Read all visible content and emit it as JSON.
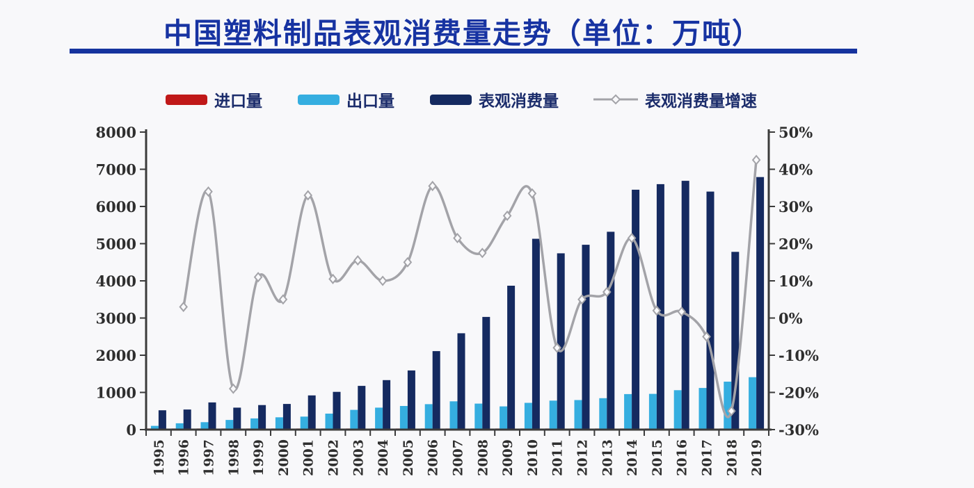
{
  "page": {
    "title": "中国塑料制品表观消费量走势（单位：万吨）"
  },
  "colors": {
    "title": "#1733a2",
    "underline": "#16339e",
    "import_bar": "#c01818",
    "export_bar": "#35aee0",
    "consumption_bar": "#152a60",
    "growth_line": "#a3a3a8",
    "axis": "#3b3b3b",
    "background": "#f8f8fa"
  },
  "legend": {
    "items": [
      {
        "label": "进口量",
        "type": "bar",
        "color": "#c01818"
      },
      {
        "label": "出口量",
        "type": "bar",
        "color": "#35aee0"
      },
      {
        "label": "表观消费量",
        "type": "bar",
        "color": "#152a60"
      },
      {
        "label": "表观消费量增速",
        "type": "line",
        "color": "#a3a3a8"
      }
    ]
  },
  "chart_data": {
    "type": "bar",
    "title": "中国塑料制品表观消费量走势（单位：万吨）",
    "xlabel": "",
    "ylabel_left": "万吨",
    "ylabel_right": "%",
    "grid": false,
    "legend_position": "top",
    "categories": [
      "1995",
      "1996",
      "1997",
      "1998",
      "1999",
      "2000",
      "2001",
      "2002",
      "2003",
      "2004",
      "2005",
      "2006",
      "2007",
      "2008",
      "2009",
      "2010",
      "2011",
      "2012",
      "2013",
      "2014",
      "2015",
      "2016",
      "2017",
      "2018",
      "2019"
    ],
    "series": [
      {
        "name": "进口量",
        "type": "bar",
        "axis": "left",
        "color": "#c01818",
        "values": [
          30,
          30,
          30,
          30,
          30,
          30,
          30,
          30,
          30,
          30,
          30,
          30,
          30,
          30,
          30,
          30,
          30,
          30,
          30,
          30,
          30,
          30,
          30,
          30,
          30
        ]
      },
      {
        "name": "出口量",
        "type": "bar",
        "axis": "left",
        "color": "#35aee0",
        "values": [
          100,
          170,
          200,
          260,
          300,
          330,
          350,
          430,
          530,
          590,
          635,
          685,
          760,
          700,
          625,
          720,
          780,
          795,
          845,
          955,
          960,
          1060,
          1120,
          1290,
          1410
        ]
      },
      {
        "name": "表观消费量",
        "type": "bar",
        "axis": "left",
        "color": "#152a60",
        "values": [
          520,
          540,
          730,
          590,
          660,
          690,
          920,
          1015,
          1175,
          1330,
          1590,
          2110,
          2590,
          3030,
          3870,
          5130,
          4740,
          4970,
          5320,
          6450,
          6600,
          6690,
          6400,
          4780,
          6790
        ]
      },
      {
        "name": "表观消费量增速",
        "type": "line",
        "axis": "right",
        "color": "#a3a3a8",
        "values": [
          null,
          3,
          34,
          -19,
          11,
          5,
          33,
          10.5,
          15.5,
          10,
          15,
          35.5,
          21.5,
          17.5,
          27.5,
          33.5,
          -8,
          5,
          7,
          21.5,
          2,
          1.7,
          -5,
          -25,
          42.5
        ]
      }
    ],
    "left_axis": {
      "min": 0,
      "max": 8000,
      "step": 1000,
      "ticks": [
        0,
        1000,
        2000,
        3000,
        4000,
        5000,
        6000,
        7000,
        8000
      ]
    },
    "right_axis": {
      "min": -30,
      "max": 50,
      "step": 10,
      "format": "percent",
      "ticks": [
        "-30%",
        "-20%",
        "-10%",
        "0%",
        "10%",
        "20%",
        "30%",
        "40%",
        "50%"
      ]
    }
  }
}
